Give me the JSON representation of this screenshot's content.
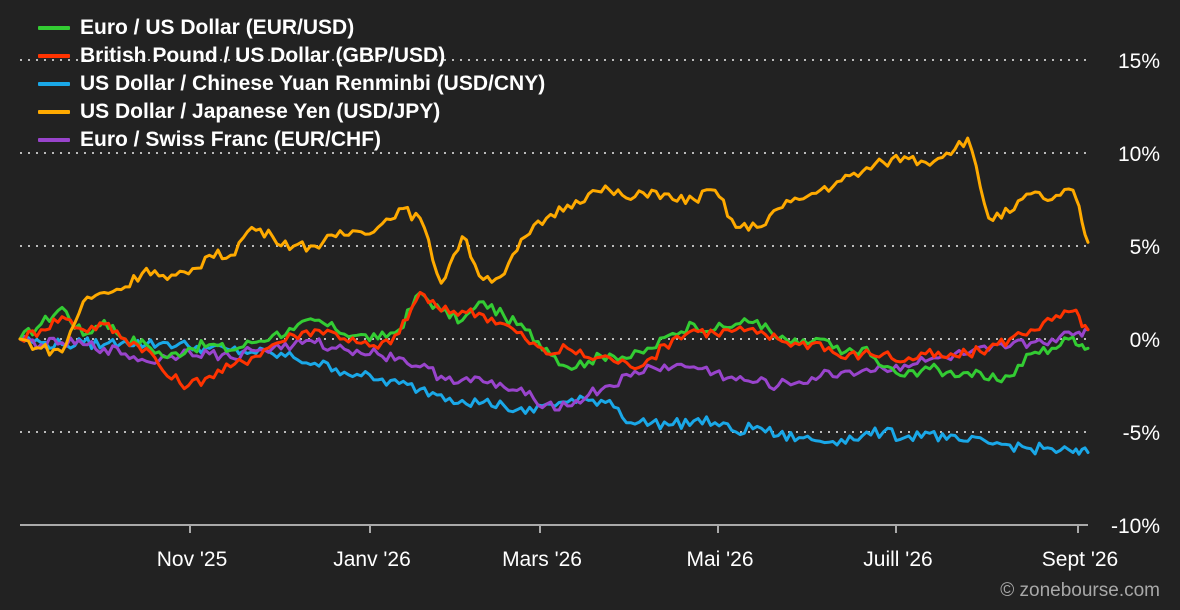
{
  "chart_data": {
    "type": "line",
    "x_ticks": [
      "Nov '25",
      "Janv '26",
      "Mars '26",
      "Mai '26",
      "Juill '26",
      "Sept '26"
    ],
    "y_ticks": [
      "15%",
      "10%",
      "5%",
      "0%",
      "-5%",
      "-10%"
    ],
    "y_values": [
      15,
      10,
      5,
      0,
      -5,
      -10
    ],
    "ylim": [
      -10,
      15
    ],
    "x_range": [
      "2025-09-15",
      "2026-09-05"
    ],
    "grid": "dotted horizontal",
    "legend_position": "top-left",
    "y_axis_position": "right",
    "series": [
      {
        "name": "Euro / US Dollar (EUR/USD)",
        "color": "#33cc33",
        "points": [
          [
            "2025-09-15",
            0
          ],
          [
            "2025-09-22",
            0.8
          ],
          [
            "2025-09-29",
            1.7
          ],
          [
            "2025-10-06",
            0.2
          ],
          [
            "2025-10-13",
            1.0
          ],
          [
            "2025-10-20",
            0.0
          ],
          [
            "2025-10-27",
            -0.3
          ],
          [
            "2025-11-03",
            -1.0
          ],
          [
            "2025-11-10",
            -0.5
          ],
          [
            "2025-11-17",
            -0.3
          ],
          [
            "2025-11-24",
            -0.6
          ],
          [
            "2025-12-01",
            -0.2
          ],
          [
            "2025-12-08",
            0.2
          ],
          [
            "2025-12-15",
            0.5
          ],
          [
            "2025-12-22",
            1.0
          ],
          [
            "2025-12-29",
            0.5
          ],
          [
            "2026-01-05",
            0.2
          ],
          [
            "2026-01-12",
            0.0
          ],
          [
            "2026-01-19",
            0.5
          ],
          [
            "2026-01-26",
            2.5
          ],
          [
            "2026-02-02",
            1.5
          ],
          [
            "2026-02-09",
            1.0
          ],
          [
            "2026-02-16",
            2.0
          ],
          [
            "2026-02-23",
            1.2
          ],
          [
            "2026-03-02",
            0.5
          ],
          [
            "2026-03-09",
            -0.5
          ],
          [
            "2026-03-16",
            -1.5
          ],
          [
            "2026-03-23",
            -1.2
          ],
          [
            "2026-03-30",
            -0.8
          ],
          [
            "2026-04-06",
            -1.0
          ],
          [
            "2026-04-13",
            -0.5
          ],
          [
            "2026-04-20",
            0.3
          ],
          [
            "2026-04-27",
            0.8
          ],
          [
            "2026-05-04",
            0.5
          ],
          [
            "2026-05-11",
            0.8
          ],
          [
            "2026-05-18",
            1.0
          ],
          [
            "2026-05-25",
            0.0
          ],
          [
            "2026-06-01",
            -0.3
          ],
          [
            "2026-06-08",
            0.0
          ],
          [
            "2026-06-15",
            -0.8
          ],
          [
            "2026-06-22",
            -0.5
          ],
          [
            "2026-06-29",
            -1.5
          ],
          [
            "2026-07-06",
            -2.0
          ],
          [
            "2026-07-13",
            -1.5
          ],
          [
            "2026-07-20",
            -1.8
          ],
          [
            "2026-07-27",
            -1.8
          ],
          [
            "2026-08-03",
            -2.2
          ],
          [
            "2026-08-10",
            -2.0
          ],
          [
            "2026-08-17",
            -0.8
          ],
          [
            "2026-08-24",
            -0.5
          ],
          [
            "2026-08-31",
            0.1
          ],
          [
            "2026-09-05",
            -0.5
          ]
        ]
      },
      {
        "name": "British Pound / US Dollar (GBP/USD)",
        "color": "#ff3300",
        "points": [
          [
            "2025-09-15",
            0
          ],
          [
            "2025-09-22",
            0.5
          ],
          [
            "2025-09-29",
            1.2
          ],
          [
            "2025-10-06",
            0.5
          ],
          [
            "2025-10-13",
            0.8
          ],
          [
            "2025-10-20",
            0.0
          ],
          [
            "2025-10-27",
            -0.5
          ],
          [
            "2025-11-03",
            -2.0
          ],
          [
            "2025-11-10",
            -2.5
          ],
          [
            "2025-11-17",
            -2.0
          ],
          [
            "2025-11-24",
            -1.5
          ],
          [
            "2025-12-01",
            -1.0
          ],
          [
            "2025-12-08",
            -0.3
          ],
          [
            "2025-12-15",
            0.2
          ],
          [
            "2025-12-22",
            0.5
          ],
          [
            "2025-12-29",
            0.3
          ],
          [
            "2026-01-05",
            -0.2
          ],
          [
            "2026-01-12",
            -0.5
          ],
          [
            "2026-01-19",
            0.3
          ],
          [
            "2026-01-26",
            2.5
          ],
          [
            "2026-02-02",
            1.5
          ],
          [
            "2026-02-09",
            1.5
          ],
          [
            "2026-02-16",
            1.3
          ],
          [
            "2026-02-23",
            0.8
          ],
          [
            "2026-03-02",
            0.0
          ],
          [
            "2026-03-09",
            -0.8
          ],
          [
            "2026-03-16",
            -0.5
          ],
          [
            "2026-03-23",
            -1.0
          ],
          [
            "2026-03-30",
            -1.0
          ],
          [
            "2026-04-06",
            -1.5
          ],
          [
            "2026-04-13",
            -1.0
          ],
          [
            "2026-04-20",
            0.0
          ],
          [
            "2026-04-27",
            0.5
          ],
          [
            "2026-05-04",
            0.3
          ],
          [
            "2026-05-11",
            0.5
          ],
          [
            "2026-05-18",
            0.3
          ],
          [
            "2026-05-25",
            0.0
          ],
          [
            "2026-06-01",
            -0.3
          ],
          [
            "2026-06-08",
            -0.2
          ],
          [
            "2026-06-15",
            -1.0
          ],
          [
            "2026-06-22",
            -0.8
          ],
          [
            "2026-06-29",
            -0.8
          ],
          [
            "2026-07-06",
            -1.2
          ],
          [
            "2026-07-13",
            -0.8
          ],
          [
            "2026-07-20",
            -1.0
          ],
          [
            "2026-07-27",
            -0.8
          ],
          [
            "2026-08-03",
            -0.5
          ],
          [
            "2026-08-10",
            0.0
          ],
          [
            "2026-08-17",
            0.5
          ],
          [
            "2026-08-24",
            1.0
          ],
          [
            "2026-08-31",
            1.5
          ],
          [
            "2026-09-05",
            0.5
          ]
        ]
      },
      {
        "name": "US Dollar / Chinese Yuan Renminbi (USD/CNY)",
        "color": "#1aa8e8",
        "points": [
          [
            "2025-09-15",
            0
          ],
          [
            "2025-09-22",
            -0.2
          ],
          [
            "2025-09-29",
            -0.3
          ],
          [
            "2025-10-06",
            -0.2
          ],
          [
            "2025-10-13",
            -0.3
          ],
          [
            "2025-10-20",
            -0.1
          ],
          [
            "2025-10-27",
            -0.3
          ],
          [
            "2025-11-03",
            -0.2
          ],
          [
            "2025-11-10",
            -0.4
          ],
          [
            "2025-11-17",
            -0.5
          ],
          [
            "2025-11-24",
            -0.6
          ],
          [
            "2025-12-01",
            -0.7
          ],
          [
            "2025-12-08",
            -0.8
          ],
          [
            "2025-12-15",
            -1.0
          ],
          [
            "2025-12-22",
            -1.3
          ],
          [
            "2025-12-29",
            -1.6
          ],
          [
            "2026-01-05",
            -1.9
          ],
          [
            "2026-01-12",
            -2.2
          ],
          [
            "2026-01-19",
            -2.4
          ],
          [
            "2026-01-26",
            -2.7
          ],
          [
            "2026-02-02",
            -3.0
          ],
          [
            "2026-02-09",
            -3.3
          ],
          [
            "2026-02-16",
            -3.4
          ],
          [
            "2026-02-23",
            -3.6
          ],
          [
            "2026-03-02",
            -4.0
          ],
          [
            "2026-03-09",
            -3.5
          ],
          [
            "2026-03-16",
            -3.4
          ],
          [
            "2026-03-23",
            -3.3
          ],
          [
            "2026-03-30",
            -3.3
          ],
          [
            "2026-04-06",
            -4.5
          ],
          [
            "2026-04-13",
            -4.5
          ],
          [
            "2026-04-20",
            -4.6
          ],
          [
            "2026-04-27",
            -4.4
          ],
          [
            "2026-05-04",
            -4.5
          ],
          [
            "2026-05-11",
            -5.0
          ],
          [
            "2026-05-18",
            -4.7
          ],
          [
            "2026-05-25",
            -5.2
          ],
          [
            "2026-06-01",
            -5.3
          ],
          [
            "2026-06-08",
            -5.5
          ],
          [
            "2026-06-15",
            -5.4
          ],
          [
            "2026-06-22",
            -5.2
          ],
          [
            "2026-06-29",
            -5.0
          ],
          [
            "2026-07-06",
            -5.3
          ],
          [
            "2026-07-13",
            -5.0
          ],
          [
            "2026-07-20",
            -5.4
          ],
          [
            "2026-07-27",
            -5.5
          ],
          [
            "2026-08-03",
            -5.6
          ],
          [
            "2026-08-10",
            -5.7
          ],
          [
            "2026-08-17",
            -5.9
          ],
          [
            "2026-08-24",
            -5.9
          ],
          [
            "2026-08-31",
            -6.1
          ],
          [
            "2026-09-05",
            -6.1
          ]
        ]
      },
      {
        "name": "US Dollar / Japanese Yen (USD/JPY)",
        "color": "#ffaa00",
        "points": [
          [
            "2025-09-15",
            0
          ],
          [
            "2025-09-22",
            -0.5
          ],
          [
            "2025-09-29",
            -0.7
          ],
          [
            "2025-10-06",
            2.0
          ],
          [
            "2025-10-13",
            2.5
          ],
          [
            "2025-10-20",
            2.8
          ],
          [
            "2025-10-27",
            3.8
          ],
          [
            "2025-11-03",
            3.2
          ],
          [
            "2025-11-10",
            3.5
          ],
          [
            "2025-11-17",
            4.5
          ],
          [
            "2025-11-24",
            4.5
          ],
          [
            "2025-12-01",
            6.0
          ],
          [
            "2025-12-08",
            5.5
          ],
          [
            "2025-12-15",
            5.0
          ],
          [
            "2025-12-22",
            5.0
          ],
          [
            "2025-12-29",
            5.5
          ],
          [
            "2026-01-05",
            5.8
          ],
          [
            "2026-01-12",
            6.0
          ],
          [
            "2026-01-19",
            7.0
          ],
          [
            "2026-01-26",
            6.5
          ],
          [
            "2026-02-02",
            3.0
          ],
          [
            "2026-02-09",
            5.5
          ],
          [
            "2026-02-16",
            3.2
          ],
          [
            "2026-02-23",
            3.5
          ],
          [
            "2026-03-02",
            5.5
          ],
          [
            "2026-03-09",
            6.5
          ],
          [
            "2026-03-16",
            7.2
          ],
          [
            "2026-03-23",
            7.8
          ],
          [
            "2026-03-30",
            8.0
          ],
          [
            "2026-04-06",
            7.5
          ],
          [
            "2026-04-13",
            8.0
          ],
          [
            "2026-04-20",
            7.5
          ],
          [
            "2026-04-27",
            7.5
          ],
          [
            "2026-05-04",
            8.0
          ],
          [
            "2026-05-11",
            6.0
          ],
          [
            "2026-05-18",
            6.0
          ],
          [
            "2026-05-25",
            7.0
          ],
          [
            "2026-06-01",
            7.5
          ],
          [
            "2026-06-08",
            8.0
          ],
          [
            "2026-06-15",
            8.5
          ],
          [
            "2026-06-22",
            9.0
          ],
          [
            "2026-06-29",
            9.5
          ],
          [
            "2026-07-06",
            9.8
          ],
          [
            "2026-07-13",
            9.5
          ],
          [
            "2026-07-20",
            10.0
          ],
          [
            "2026-07-27",
            10.8
          ],
          [
            "2026-08-03",
            6.5
          ],
          [
            "2026-08-10",
            6.8
          ],
          [
            "2026-08-17",
            7.8
          ],
          [
            "2026-08-24",
            7.5
          ],
          [
            "2026-08-31",
            8.0
          ],
          [
            "2026-09-05",
            5.2
          ]
        ]
      },
      {
        "name": "Euro / Swiss Franc (EUR/CHF)",
        "color": "#9944cc",
        "points": [
          [
            "2025-09-15",
            0
          ],
          [
            "2025-09-22",
            -0.3
          ],
          [
            "2025-09-29",
            -0.2
          ],
          [
            "2025-10-06",
            -0.3
          ],
          [
            "2025-10-13",
            -0.5
          ],
          [
            "2025-10-20",
            -0.8
          ],
          [
            "2025-10-27",
            -1.2
          ],
          [
            "2025-11-03",
            -1.0
          ],
          [
            "2025-11-10",
            -0.6
          ],
          [
            "2025-11-17",
            -0.8
          ],
          [
            "2025-11-24",
            -1.0
          ],
          [
            "2025-12-01",
            -0.6
          ],
          [
            "2025-12-08",
            -0.5
          ],
          [
            "2025-12-15",
            -0.3
          ],
          [
            "2025-12-22",
            -0.2
          ],
          [
            "2025-12-29",
            -0.5
          ],
          [
            "2026-01-05",
            -0.6
          ],
          [
            "2026-01-12",
            -0.8
          ],
          [
            "2026-01-19",
            -1.0
          ],
          [
            "2026-01-26",
            -1.5
          ],
          [
            "2026-02-02",
            -2.0
          ],
          [
            "2026-02-09",
            -2.2
          ],
          [
            "2026-02-16",
            -2.3
          ],
          [
            "2026-02-23",
            -2.6
          ],
          [
            "2026-03-02",
            -3.0
          ],
          [
            "2026-03-09",
            -3.5
          ],
          [
            "2026-03-16",
            -3.6
          ],
          [
            "2026-03-23",
            -3.0
          ],
          [
            "2026-03-30",
            -2.5
          ],
          [
            "2026-04-06",
            -2.0
          ],
          [
            "2026-04-13",
            -1.5
          ],
          [
            "2026-04-20",
            -1.5
          ],
          [
            "2026-04-27",
            -1.5
          ],
          [
            "2026-05-04",
            -1.8
          ],
          [
            "2026-05-11",
            -2.2
          ],
          [
            "2026-05-18",
            -2.3
          ],
          [
            "2026-05-25",
            -2.5
          ],
          [
            "2026-06-01",
            -2.3
          ],
          [
            "2026-06-08",
            -2.0
          ],
          [
            "2026-06-15",
            -1.8
          ],
          [
            "2026-06-22",
            -1.7
          ],
          [
            "2026-06-29",
            -1.6
          ],
          [
            "2026-07-06",
            -1.4
          ],
          [
            "2026-07-13",
            -1.2
          ],
          [
            "2026-07-20",
            -1.0
          ],
          [
            "2026-07-27",
            -0.8
          ],
          [
            "2026-08-03",
            -0.6
          ],
          [
            "2026-08-10",
            -0.4
          ],
          [
            "2026-08-17",
            -0.2
          ],
          [
            "2026-08-24",
            0.0
          ],
          [
            "2026-08-31",
            0.2
          ],
          [
            "2026-09-05",
            0.5
          ]
        ]
      }
    ]
  },
  "credit": "© zonebourse.com"
}
